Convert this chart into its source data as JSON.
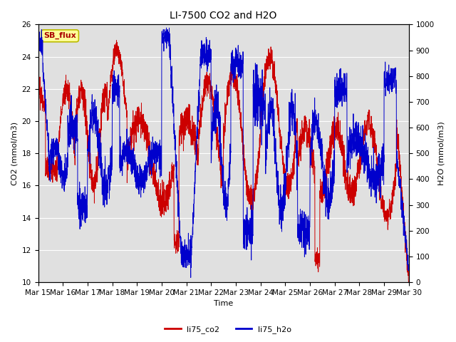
{
  "title": "LI-7500 CO2 and H2O",
  "xlabel": "Time",
  "ylabel_left": "CO2 (mmol/m3)",
  "ylabel_right": "H2O (mmol/m3)",
  "xlim": [
    0,
    15
  ],
  "ylim_left": [
    10,
    26
  ],
  "ylim_right": [
    0,
    1000
  ],
  "co2_color": "#cc0000",
  "h2o_color": "#0000cc",
  "bg_color": "#e0e0e0",
  "legend_label_co2": "li75_co2",
  "legend_label_h2o": "li75_h2o",
  "annotation_text": "SB_flux",
  "annotation_bg": "#ffff99",
  "annotation_border": "#bbbb00",
  "annotation_text_color": "#aa0000",
  "x_tick_labels": [
    "Mar 15",
    "Mar 16",
    "Mar 17",
    "Mar 18",
    "Mar 19",
    "Mar 20",
    "Mar 21",
    "Mar 22",
    "Mar 23",
    "Mar 24",
    "Mar 25",
    "Mar 26",
    "Mar 27",
    "Mar 28",
    "Mar 29",
    "Mar 30"
  ],
  "title_fontsize": 10,
  "label_fontsize": 8,
  "tick_fontsize": 7.5,
  "legend_fontsize": 8,
  "annotation_fontsize": 8
}
